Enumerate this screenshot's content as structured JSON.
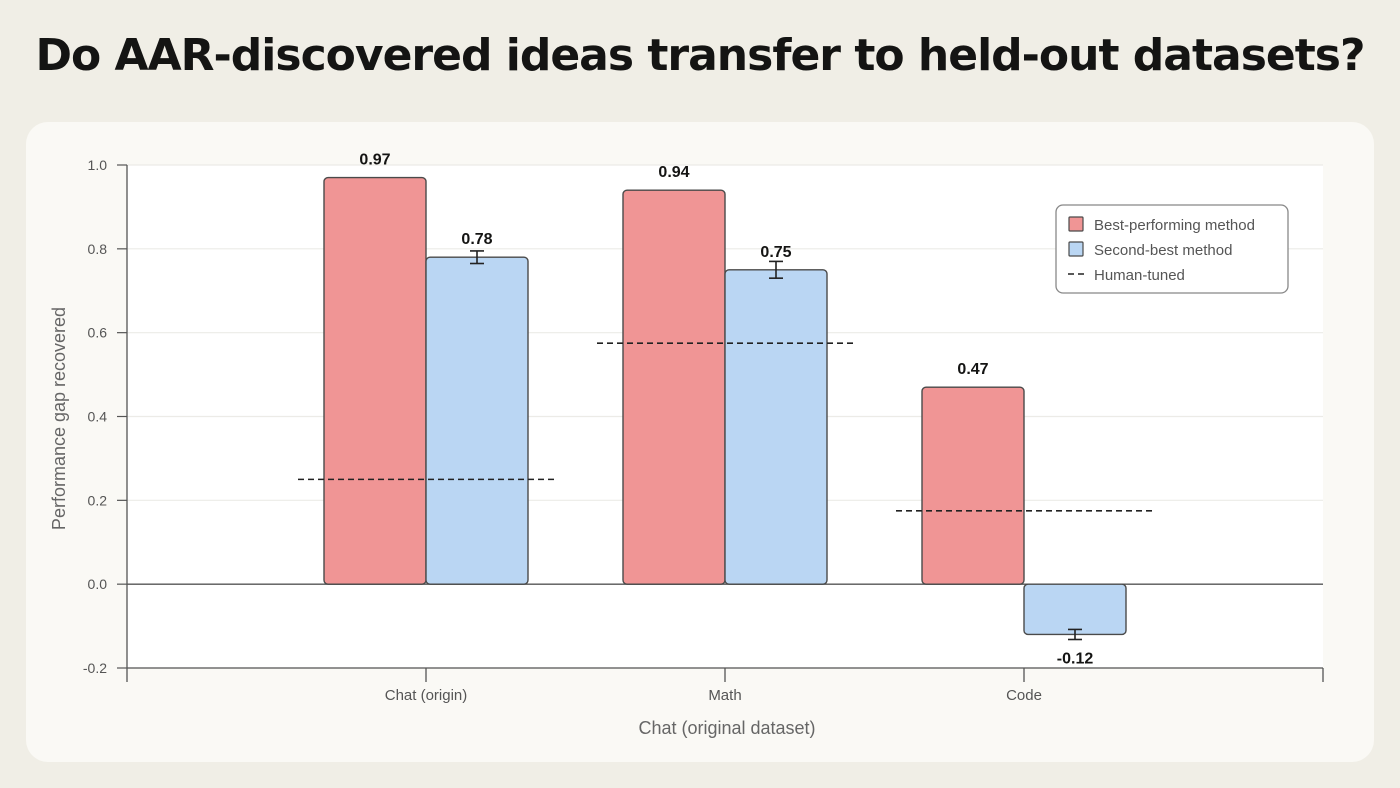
{
  "page": {
    "title": "Do AAR-discovered ideas transfer to held-out datasets?"
  },
  "chart_data": {
    "type": "bar",
    "categories": [
      "Chat (origin)",
      "Math",
      "Code"
    ],
    "xlabel": "Chat (original dataset)",
    "ylabel": "Performance gap recovered",
    "ylim": [
      -0.2,
      1.0
    ],
    "yticks": [
      "-0.2",
      "0.0",
      "0.2",
      "0.4",
      "0.6",
      "0.8",
      "1.0"
    ],
    "grid": true,
    "legend_position": "top-right",
    "series": [
      {
        "name": "Best-performing method",
        "color": "#f09595",
        "values": [
          0.97,
          0.94,
          0.47
        ],
        "labels": [
          "0.97",
          "0.94",
          "0.47"
        ],
        "errors": [
          null,
          null,
          null
        ]
      },
      {
        "name": "Second-best method",
        "color": "#bad6f3",
        "values": [
          0.78,
          0.75,
          -0.12
        ],
        "labels": [
          "0.78",
          "0.75",
          "-0.12"
        ],
        "errors": [
          0.015,
          0.02,
          0.012
        ]
      }
    ],
    "reference": {
      "name": "Human-tuned",
      "style": "dashed",
      "values": [
        0.25,
        0.575,
        0.175
      ]
    }
  }
}
